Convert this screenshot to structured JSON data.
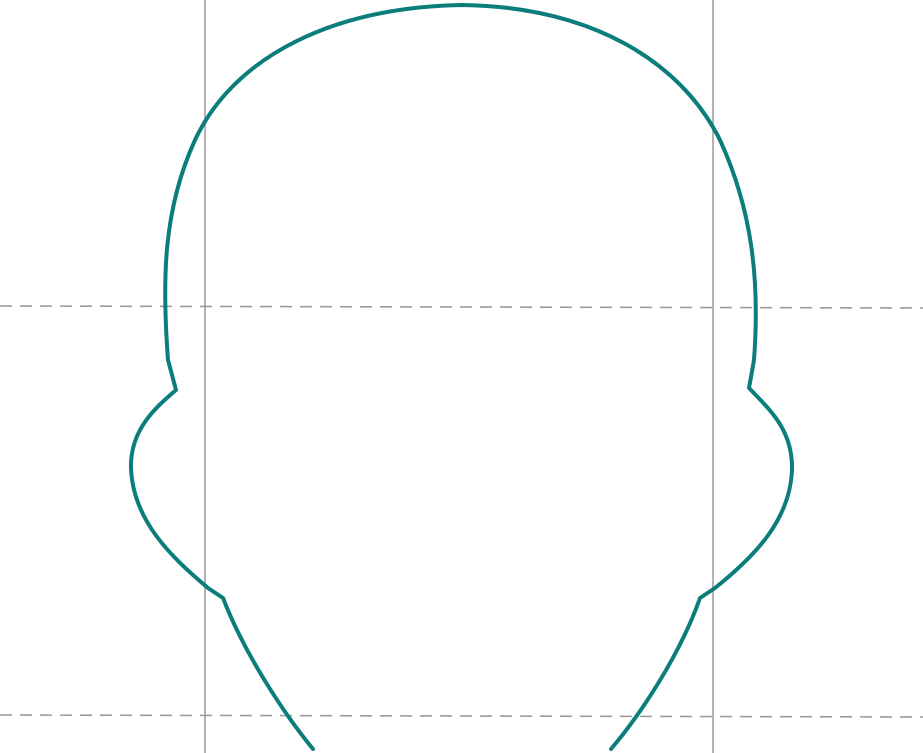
{
  "colors": {
    "background": "#ffffff",
    "outline": "#0b7d7b",
    "vertical_guide": "#b3b3b3",
    "horizontal_guide": "#9a9a9a"
  },
  "figure": {
    "subject": "head-outline-with-ears",
    "vertical_guides": 2,
    "horizontal_guides": 2
  }
}
